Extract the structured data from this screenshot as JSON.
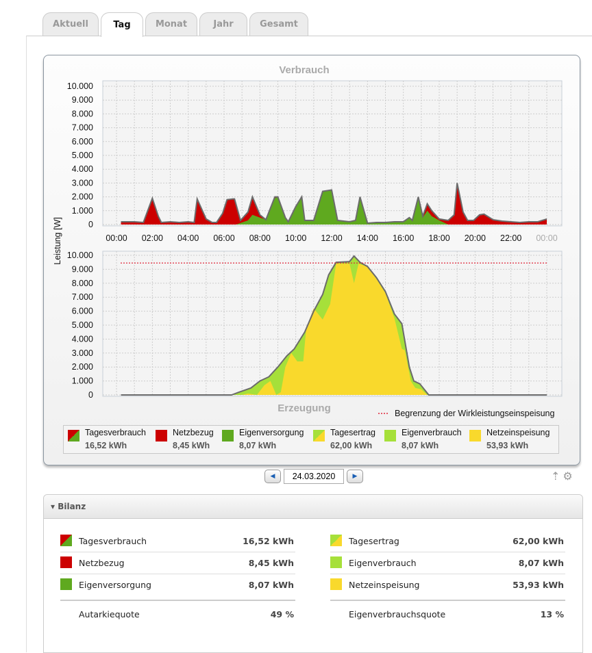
{
  "tabs": [
    {
      "label": "Aktuell"
    },
    {
      "label": "Tag"
    },
    {
      "label": "Monat"
    },
    {
      "label": "Jahr"
    },
    {
      "label": "Gesamt"
    }
  ],
  "active_tab": "Tag",
  "colors": {
    "netzbezug": "#cc0000",
    "eigenversorgung": "#5fa91f",
    "eigenverbrauch": "#a6e03a",
    "netzeinspeisung": "#f9d92c",
    "limit": "#e0263a",
    "outline": "#6b6b6b"
  },
  "chart_data": [
    {
      "type": "area",
      "title": "Verbrauch",
      "ylabel": "Leistung [W]",
      "ylim": [
        0,
        10000
      ],
      "yticks": [
        "0",
        "1.000",
        "2.000",
        "3.000",
        "4.000",
        "5.000",
        "6.000",
        "7.000",
        "8.000",
        "9.000",
        "10.000"
      ],
      "xticks": [
        "00:00",
        "02:00",
        "04:00",
        "06:00",
        "08:00",
        "10:00",
        "12:00",
        "14:00",
        "16:00",
        "18:00",
        "20:00",
        "22:00",
        "00:00"
      ],
      "grid": true,
      "series": [
        {
          "name": "Tagesverbrauch",
          "x": [
            "00:15",
            "01:00",
            "01:30",
            "02:00",
            "02:20",
            "02:30",
            "03:00",
            "03:30",
            "04:00",
            "04:20",
            "04:30",
            "05:00",
            "05:20",
            "05:35",
            "05:55",
            "06:10",
            "06:30",
            "06:35",
            "06:55",
            "07:20",
            "07:35",
            "08:00",
            "08:20",
            "08:50",
            "09:00",
            "09:25",
            "09:35",
            "10:00",
            "10:20",
            "10:30",
            "11:00",
            "11:30",
            "12:00",
            "12:20",
            "13:00",
            "13:20",
            "13:35",
            "14:00",
            "14:30",
            "15:00",
            "15:30",
            "16:00",
            "16:20",
            "16:30",
            "16:50",
            "17:05",
            "17:20",
            "17:35",
            "18:00",
            "18:30",
            "18:50",
            "19:00",
            "19:20",
            "19:35",
            "19:55",
            "20:15",
            "20:30",
            "21:00",
            "21:30",
            "22:00",
            "22:30",
            "23:00",
            "23:30",
            "24:00"
          ],
          "values": [
            200,
            200,
            150,
            1900,
            600,
            150,
            200,
            150,
            200,
            150,
            1850,
            400,
            150,
            150,
            800,
            1800,
            1850,
            1850,
            300,
            900,
            2000,
            700,
            350,
            2000,
            2000,
            500,
            200,
            1300,
            2000,
            300,
            300,
            2400,
            2500,
            300,
            200,
            300,
            2000,
            100,
            150,
            150,
            200,
            200,
            500,
            300,
            2000,
            600,
            1500,
            1000,
            400,
            300,
            700,
            3000,
            900,
            300,
            300,
            700,
            750,
            350,
            250,
            200,
            150,
            200,
            200,
            400
          ]
        },
        {
          "name": "Eigenversorgung",
          "x": [
            "06:40",
            "07:20",
            "07:35",
            "08:00",
            "08:20",
            "08:50",
            "09:00",
            "09:25",
            "09:35",
            "10:00",
            "10:20",
            "10:30",
            "11:00",
            "11:30",
            "12:00",
            "12:20",
            "13:00",
            "13:20",
            "13:35",
            "14:00",
            "14:30",
            "15:00",
            "15:30",
            "16:00",
            "16:20",
            "16:30",
            "16:50",
            "17:05",
            "17:20",
            "17:35",
            "18:00",
            "18:30"
          ],
          "values": [
            0,
            300,
            700,
            500,
            350,
            1900,
            2000,
            500,
            200,
            1300,
            2000,
            300,
            300,
            2400,
            2500,
            300,
            200,
            300,
            2000,
            100,
            150,
            150,
            200,
            200,
            500,
            300,
            2000,
            500,
            1000,
            600,
            300,
            0
          ]
        }
      ]
    },
    {
      "type": "area",
      "title": "Erzeugung",
      "ylim": [
        0,
        10000
      ],
      "yticks": [
        "0",
        "1.000",
        "2.000",
        "3.000",
        "4.000",
        "5.000",
        "6.000",
        "7.000",
        "8.000",
        "9.000",
        "10.000"
      ],
      "grid": true,
      "limit_line": {
        "label": "Begrenzung der Wirkleistungseinspeisung",
        "value": 9450
      },
      "series": [
        {
          "name": "Tagesertrag",
          "x": [
            "00:15",
            "06:25",
            "06:50",
            "07:30",
            "08:00",
            "08:30",
            "09:00",
            "09:30",
            "09:55",
            "10:30",
            "11:00",
            "11:30",
            "11:50",
            "12:15",
            "13:00",
            "13:15",
            "13:35",
            "14:00",
            "14:30",
            "15:00",
            "15:30",
            "15:55",
            "16:20",
            "16:35",
            "16:55",
            "17:25",
            "24:00"
          ],
          "values": [
            0,
            0,
            200,
            500,
            1000,
            1300,
            2000,
            2800,
            3300,
            4500,
            6000,
            7200,
            8600,
            9500,
            9550,
            9950,
            9500,
            9200,
            8400,
            7400,
            5800,
            5100,
            2000,
            1000,
            800,
            0,
            0
          ]
        },
        {
          "name": "Netzeinspeisung",
          "x": [
            "07:00",
            "07:20",
            "07:50",
            "08:15",
            "08:35",
            "08:55",
            "09:10",
            "09:25",
            "09:45",
            "10:05",
            "10:25",
            "10:35",
            "11:00",
            "11:30",
            "11:55",
            "12:15",
            "13:00",
            "13:15",
            "13:30",
            "14:00",
            "14:30",
            "15:00",
            "15:30",
            "15:55",
            "16:05",
            "16:25",
            "16:40",
            "17:00",
            "17:20"
          ],
          "values": [
            0,
            100,
            0,
            700,
            1000,
            0,
            200,
            2000,
            3000,
            2400,
            2400,
            4800,
            6200,
            5400,
            6500,
            9400,
            9400,
            8000,
            9400,
            9200,
            8300,
            7300,
            5500,
            3300,
            3200,
            1000,
            500,
            400,
            0
          ]
        }
      ]
    }
  ],
  "legend": [
    {
      "label": "Tagesverbrauch",
      "value": "16,52 kWh",
      "swatch": "verbrauch"
    },
    {
      "label": "Netzbezug",
      "value": "8,45 kWh",
      "swatch": "netzbezug"
    },
    {
      "label": "Eigenversorgung",
      "value": "8,07 kWh",
      "swatch": "eigenversorgung"
    },
    {
      "label": "Tagesertrag",
      "value": "62,00 kWh",
      "swatch": "ertrag"
    },
    {
      "label": "Eigenverbrauch",
      "value": "8,07 kWh",
      "swatch": "eigenverbrauch"
    },
    {
      "label": "Netzeinspeisung",
      "value": "53,93 kWh",
      "swatch": "netzeinspeisung"
    }
  ],
  "date": "24.03.2020",
  "bilanz": {
    "title": "Bilanz",
    "left": [
      {
        "label": "Tagesverbrauch",
        "value": "16,52 kWh"
      },
      {
        "label": "Netzbezug",
        "value": "8,45 kWh"
      },
      {
        "label": "Eigenversorgung",
        "value": "8,07 kWh"
      }
    ],
    "left_quote": {
      "label": "Autarkiequote",
      "value": "49 %"
    },
    "right": [
      {
        "label": "Tagesertrag",
        "value": "62,00 kWh"
      },
      {
        "label": "Eigenverbrauch",
        "value": "8,07 kWh"
      },
      {
        "label": "Netzeinspeisung",
        "value": "53,93 kWh"
      }
    ],
    "right_quote": {
      "label": "Eigenverbrauchsquote",
      "value": "13 %"
    }
  }
}
